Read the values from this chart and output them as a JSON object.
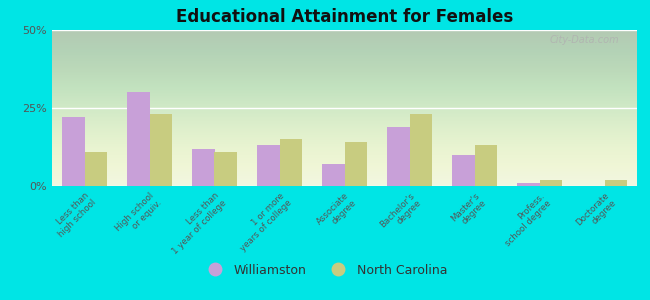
{
  "title": "Educational Attainment for Females",
  "categories": [
    "Less than\nhigh school",
    "High school\nor equiv.",
    "Less than\n1 year of college",
    "1 or more\nyears of college",
    "Associate\ndegree",
    "Bachelor's\ndegree",
    "Master's\ndegree",
    "Profess.\nschool degree",
    "Doctorate\ndegree"
  ],
  "williamston": [
    22,
    30,
    12,
    13,
    7,
    19,
    10,
    1,
    0
  ],
  "north_carolina": [
    11,
    23,
    11,
    15,
    14,
    23,
    13,
    2,
    2
  ],
  "williamston_color": "#c8a0d8",
  "nc_color": "#c8cc80",
  "background_color": "#00e5e5",
  "plot_bg_color": "#eef5e0",
  "ylim": [
    0,
    50
  ],
  "yticks": [
    0,
    25,
    50
  ],
  "ytick_labels": [
    "0%",
    "25%",
    "50%"
  ],
  "legend_williamston": "Williamston",
  "legend_nc": "North Carolina",
  "watermark": "City-Data.com"
}
